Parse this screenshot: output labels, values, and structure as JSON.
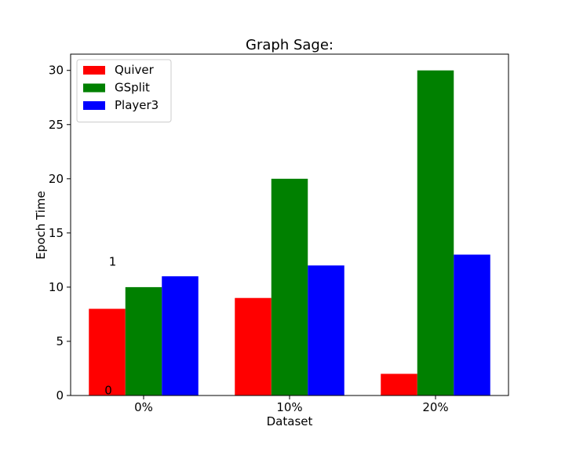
{
  "chart_data": {
    "type": "bar",
    "title": "Graph Sage:",
    "xlabel": "Dataset",
    "ylabel": "Epoch Time",
    "categories": [
      "0%",
      "10%",
      "20%"
    ],
    "series": [
      {
        "name": "Quiver",
        "color": "#ff0000",
        "values": [
          8,
          9,
          2
        ]
      },
      {
        "name": "GSplit",
        "color": "#008000",
        "values": [
          10,
          20,
          30
        ]
      },
      {
        "name": "Player3",
        "color": "#0000ff",
        "values": [
          11,
          12,
          13
        ]
      }
    ],
    "ylim": [
      0,
      31.5
    ],
    "yticks": [
      0,
      5,
      10,
      15,
      20,
      25,
      30
    ],
    "grid": false,
    "legend": "top-left",
    "annotations": [
      {
        "text": "0",
        "x": 0,
        "y": 0.1
      },
      {
        "text": "1",
        "x": 0.03,
        "y": 12
      }
    ]
  }
}
